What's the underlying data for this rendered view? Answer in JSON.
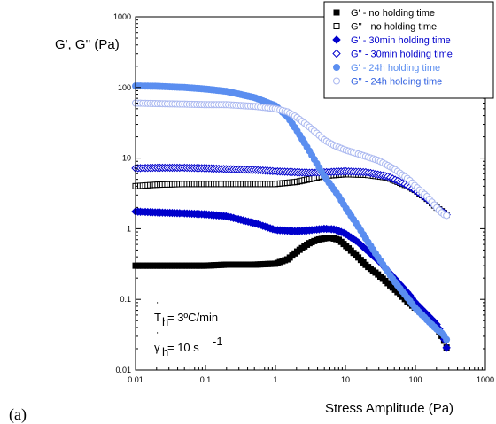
{
  "chart_data": {
    "type": "scatter",
    "panel_label": "(a)",
    "ylabel": "G', G'' (Pa)",
    "xlabel": "Stress Amplitude (Pa)",
    "x_scale": "log",
    "y_scale": "log",
    "xlim": [
      0.01,
      1000
    ],
    "ylim": [
      0.01,
      1000
    ],
    "x_ticks": [
      "0.01",
      "0.1",
      "1",
      "10",
      "100",
      "1000"
    ],
    "y_ticks": [
      "0.01",
      "0.1",
      "1",
      "10",
      "100",
      "1000"
    ],
    "grid": false,
    "legend_position": "top-right",
    "annotations": {
      "rate_label": "T",
      "rate_sub": "h",
      "rate_value": " = 3ºC/min",
      "shear_label": "γ",
      "shear_sub": "h",
      "shear_value": " = 10 s",
      "shear_exp": "-1"
    },
    "series": [
      {
        "name": "G' - no holding time",
        "marker": "square",
        "filled": true,
        "color": "#000000",
        "points": [
          [
            0.01,
            0.3
          ],
          [
            0.02,
            0.3
          ],
          [
            0.05,
            0.3
          ],
          [
            0.1,
            0.3
          ],
          [
            0.2,
            0.31
          ],
          [
            0.5,
            0.31
          ],
          [
            1,
            0.32
          ],
          [
            1.5,
            0.37
          ],
          [
            2,
            0.47
          ],
          [
            3,
            0.62
          ],
          [
            4,
            0.7
          ],
          [
            5,
            0.73
          ],
          [
            6,
            0.75
          ],
          [
            8,
            0.7
          ],
          [
            10,
            0.58
          ],
          [
            15,
            0.4
          ],
          [
            20,
            0.3
          ],
          [
            30,
            0.22
          ],
          [
            50,
            0.14
          ],
          [
            80,
            0.09
          ],
          [
            100,
            0.075
          ],
          [
            150,
            0.055
          ],
          [
            200,
            0.04
          ],
          [
            250,
            0.028
          ],
          [
            300,
            0.017
          ]
        ]
      },
      {
        "name": "G'' - no holding time",
        "marker": "square",
        "filled": false,
        "color": "#000000",
        "points": [
          [
            0.01,
            4.0
          ],
          [
            0.02,
            4.2
          ],
          [
            0.05,
            4.3
          ],
          [
            0.1,
            4.3
          ],
          [
            0.2,
            4.3
          ],
          [
            0.5,
            4.3
          ],
          [
            1,
            4.3
          ],
          [
            2,
            4.6
          ],
          [
            3,
            5.0
          ],
          [
            5,
            5.6
          ],
          [
            10,
            5.9
          ],
          [
            20,
            5.8
          ],
          [
            40,
            5.3
          ],
          [
            70,
            4.2
          ],
          [
            100,
            3.5
          ],
          [
            150,
            2.6
          ],
          [
            200,
            2.0
          ],
          [
            250,
            1.7
          ],
          [
            300,
            1.5
          ]
        ]
      },
      {
        "name": "G' - 30min holding time",
        "marker": "diamond",
        "filled": true,
        "color": "#0000cc",
        "points": [
          [
            0.01,
            1.75
          ],
          [
            0.02,
            1.7
          ],
          [
            0.05,
            1.65
          ],
          [
            0.1,
            1.6
          ],
          [
            0.2,
            1.5
          ],
          [
            0.5,
            1.2
          ],
          [
            1,
            0.96
          ],
          [
            2,
            0.92
          ],
          [
            3,
            0.95
          ],
          [
            5,
            1.0
          ],
          [
            7,
            0.98
          ],
          [
            10,
            0.85
          ],
          [
            15,
            0.65
          ],
          [
            20,
            0.5
          ],
          [
            30,
            0.35
          ],
          [
            50,
            0.2
          ],
          [
            80,
            0.12
          ],
          [
            100,
            0.09
          ],
          [
            150,
            0.06
          ],
          [
            200,
            0.045
          ],
          [
            250,
            0.03
          ],
          [
            300,
            0.016
          ]
        ]
      },
      {
        "name": "G'' - 30min holding time",
        "marker": "diamond",
        "filled": false,
        "color": "#0000cc",
        "points": [
          [
            0.01,
            7.2
          ],
          [
            0.02,
            7.3
          ],
          [
            0.05,
            7.3
          ],
          [
            0.1,
            7.2
          ],
          [
            0.2,
            7.0
          ],
          [
            0.5,
            6.8
          ],
          [
            1,
            6.5
          ],
          [
            2,
            6.3
          ],
          [
            3,
            6.2
          ],
          [
            5,
            6.3
          ],
          [
            10,
            6.5
          ],
          [
            20,
            6.3
          ],
          [
            40,
            5.5
          ],
          [
            70,
            4.3
          ],
          [
            100,
            3.5
          ],
          [
            150,
            2.6
          ],
          [
            200,
            2.0
          ],
          [
            250,
            1.7
          ],
          [
            300,
            1.5
          ]
        ]
      },
      {
        "name": "G' - 24h holding time",
        "marker": "circle",
        "filled": true,
        "color": "#5b8ef0",
        "points": [
          [
            0.01,
            105
          ],
          [
            0.02,
            104
          ],
          [
            0.05,
            100
          ],
          [
            0.1,
            95
          ],
          [
            0.2,
            88
          ],
          [
            0.5,
            72
          ],
          [
            1,
            55
          ],
          [
            1.5,
            38
          ],
          [
            2,
            25
          ],
          [
            3,
            13
          ],
          [
            4,
            8
          ],
          [
            5,
            5.5
          ],
          [
            6,
            4.3
          ],
          [
            8,
            2.9
          ],
          [
            10,
            2.0
          ],
          [
            15,
            1.1
          ],
          [
            20,
            0.7
          ],
          [
            30,
            0.38
          ],
          [
            50,
            0.18
          ],
          [
            80,
            0.1
          ],
          [
            100,
            0.075
          ],
          [
            150,
            0.05
          ],
          [
            200,
            0.038
          ],
          [
            250,
            0.032
          ],
          [
            300,
            0.024
          ]
        ]
      },
      {
        "name": "G'' - 24h holding time",
        "marker": "circle",
        "filled": false,
        "color": "#aab8f0",
        "points": [
          [
            0.01,
            60
          ],
          [
            0.02,
            59
          ],
          [
            0.05,
            58
          ],
          [
            0.1,
            57
          ],
          [
            0.2,
            57
          ],
          [
            0.5,
            54
          ],
          [
            1,
            50
          ],
          [
            1.5,
            45
          ],
          [
            2,
            38
          ],
          [
            3,
            28
          ],
          [
            4,
            22
          ],
          [
            5,
            18
          ],
          [
            7,
            15
          ],
          [
            10,
            13
          ],
          [
            15,
            11.5
          ],
          [
            20,
            10.5
          ],
          [
            30,
            9.2
          ],
          [
            50,
            7.0
          ],
          [
            80,
            5.0
          ],
          [
            100,
            4.0
          ],
          [
            150,
            2.8
          ],
          [
            200,
            2.0
          ],
          [
            250,
            1.6
          ],
          [
            300,
            1.5
          ]
        ]
      }
    ]
  }
}
